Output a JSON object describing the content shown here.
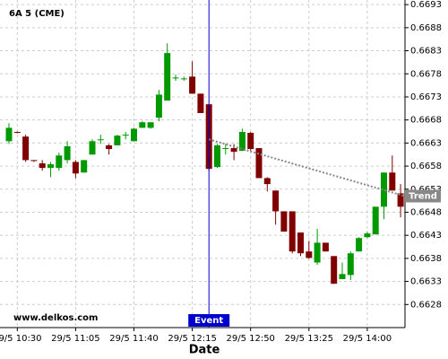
{
  "chart_data": {
    "type": "candlestick",
    "title": "6A 5 (CME)",
    "x_label": "Date",
    "watermark": "www.delkos.com",
    "categories": [
      null,
      "29/5 10:30",
      null,
      null,
      null,
      null,
      null,
      null,
      "29/5 11:05",
      null,
      null,
      null,
      null,
      null,
      null,
      "29/5 11:40",
      null,
      null,
      null,
      null,
      null,
      null,
      "29/5 12:15",
      null,
      null,
      null,
      null,
      null,
      null,
      "29/5 12:50",
      null,
      null,
      null,
      null,
      null,
      null,
      "29/5 13:25",
      null,
      null,
      null,
      null,
      null,
      null,
      "29/5 14:00",
      null,
      null,
      null,
      null
    ],
    "open": [
      0.66634,
      0.66654,
      0.66644,
      0.66593,
      0.66586,
      0.66576,
      0.66576,
      0.66593,
      0.66589,
      0.66566,
      0.66605,
      0.66638,
      0.66625,
      0.66625,
      0.66648,
      0.66634,
      0.66663,
      0.66663,
      0.66685,
      0.66722,
      0.66772,
      0.6677,
      0.66774,
      0.66737,
      0.66714,
      0.66578,
      0.66619,
      0.66619,
      0.66613,
      0.66652,
      0.66619,
      0.66554,
      0.66527,
      0.66482,
      0.66482,
      0.66436,
      0.66395,
      0.66371,
      0.66414,
      0.66385,
      0.66335,
      0.66344,
      0.66395,
      0.66426,
      0.66432,
      0.66492,
      0.66566,
      0.66521
    ],
    "high": [
      0.66673,
      0.66655,
      0.66648,
      0.66593,
      0.66593,
      0.66589,
      0.66609,
      0.66634,
      0.66593,
      0.66593,
      0.66638,
      0.66648,
      0.66628,
      0.66648,
      0.66654,
      0.66663,
      0.66677,
      0.66675,
      0.66745,
      0.66846,
      0.66778,
      0.66774,
      0.66807,
      0.66737,
      0.66714,
      0.66628,
      0.66628,
      0.66628,
      0.66661,
      0.66654,
      0.66619,
      0.66556,
      0.66527,
      0.66482,
      0.66482,
      0.66436,
      0.66418,
      0.66444,
      0.66414,
      0.66385,
      0.66371,
      0.66395,
      0.66426,
      0.66438,
      0.66492,
      0.66566,
      0.66603,
      0.66541
    ],
    "low": [
      0.66628,
      0.66651,
      0.66589,
      0.66589,
      0.6657,
      0.66556,
      0.6657,
      0.66586,
      0.66554,
      0.66566,
      0.66605,
      0.66628,
      0.66605,
      0.66625,
      0.66638,
      0.66634,
      0.66663,
      0.66661,
      0.66677,
      0.66722,
      0.66765,
      0.66765,
      0.66737,
      0.66695,
      0.6657,
      0.66576,
      0.66605,
      0.66593,
      0.66613,
      0.66613,
      0.66554,
      0.66525,
      0.66453,
      0.66438,
      0.66391,
      0.66385,
      0.66379,
      0.66366,
      0.66395,
      0.66325,
      0.66335,
      0.66333,
      0.66395,
      0.66424,
      0.66432,
      0.66465,
      0.66527,
      0.66469
    ],
    "close": [
      0.66663,
      0.66652,
      0.66593,
      0.66591,
      0.66576,
      0.66584,
      0.66603,
      0.66623,
      0.66564,
      0.66593,
      0.66634,
      0.66638,
      0.66617,
      0.66646,
      0.66648,
      0.66661,
      0.66675,
      0.66675,
      0.66735,
      0.66825,
      0.66772,
      0.6677,
      0.66737,
      0.66695,
      0.66574,
      0.66625,
      0.66619,
      0.66611,
      0.66654,
      0.66617,
      0.66554,
      0.66541,
      0.66482,
      0.66438,
      0.66395,
      0.66391,
      0.66381,
      0.66414,
      0.66395,
      0.66325,
      0.66346,
      0.66391,
      0.66424,
      0.66434,
      0.66492,
      0.66566,
      0.66527,
      0.66492
    ],
    "up_color": "#009900",
    "down_color": "#800000",
    "ylim": [
      0.6623,
      0.6694
    ],
    "yticks": [
      0.6628,
      0.6633,
      0.6638,
      0.6643,
      0.6648,
      0.6653,
      0.6658,
      0.6663,
      0.6668,
      0.6673,
      0.6678,
      0.6683,
      0.6688,
      0.6693
    ],
    "grid": true,
    "event": {
      "label": "Event",
      "index": 24,
      "color": "#0000cc"
    },
    "trend": {
      "label": "Trend",
      "from": {
        "index": 24,
        "value": 0.66638
      },
      "to": {
        "index": 47.5,
        "value": 0.66515
      },
      "color": "#888888"
    }
  }
}
